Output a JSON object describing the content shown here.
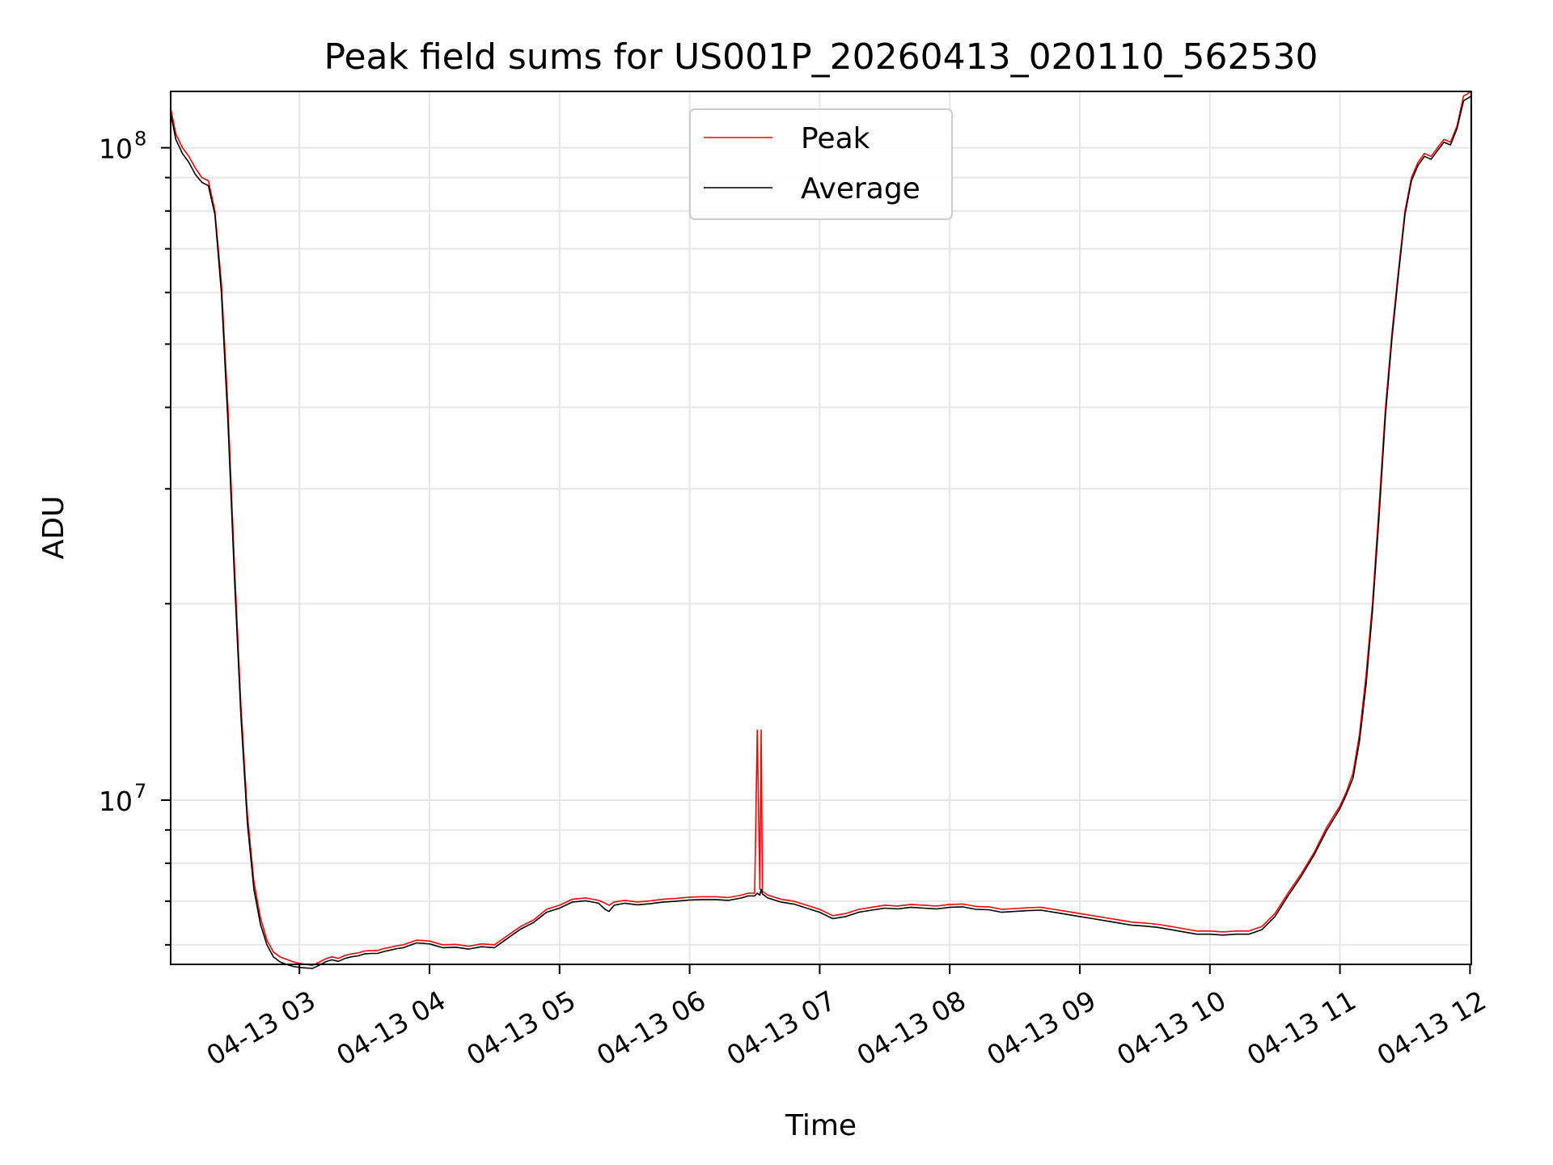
{
  "chart_data": {
    "type": "line",
    "title": "Peak field sums for US001P_20260413_020110_562530",
    "xlabel": "Time",
    "ylabel": "ADU",
    "yscale": "log",
    "xlim": [
      2.01,
      12.01
    ],
    "ylim": [
      5600000,
      122000000
    ],
    "x_ticks": [
      {
        "value": 3,
        "label": "04-13 03"
      },
      {
        "value": 4,
        "label": "04-13 04"
      },
      {
        "value": 5,
        "label": "04-13 05"
      },
      {
        "value": 6,
        "label": "04-13 06"
      },
      {
        "value": 7,
        "label": "04-13 07"
      },
      {
        "value": 8,
        "label": "04-13 08"
      },
      {
        "value": 9,
        "label": "04-13 09"
      },
      {
        "value": 10,
        "label": "04-13 10"
      },
      {
        "value": 11,
        "label": "04-13 11"
      },
      {
        "value": 12,
        "label": "04-13 12"
      }
    ],
    "y_major_ticks": [
      {
        "value": 10000000,
        "base": "10",
        "exp": "7"
      },
      {
        "value": 100000000,
        "base": "10",
        "exp": "8"
      }
    ],
    "y_minor_ticks": [
      6000000,
      7000000,
      8000000,
      9000000,
      20000000,
      30000000,
      40000000,
      50000000,
      60000000,
      70000000,
      80000000,
      90000000
    ],
    "grid": true,
    "legend_position": "upper center",
    "series": [
      {
        "name": "Peak",
        "color": "#ff0000",
        "x": [
          2.01,
          2.05,
          2.1,
          2.15,
          2.2,
          2.25,
          2.3,
          2.35,
          2.4,
          2.45,
          2.5,
          2.55,
          2.6,
          2.65,
          2.7,
          2.75,
          2.8,
          2.85,
          2.9,
          2.95,
          3.0,
          3.05,
          3.1,
          3.15,
          3.2,
          3.25,
          3.3,
          3.35,
          3.4,
          3.45,
          3.5,
          3.55,
          3.6,
          3.65,
          3.7,
          3.75,
          3.8,
          3.85,
          3.9,
          4.0,
          4.1,
          4.2,
          4.3,
          4.4,
          4.5,
          4.6,
          4.7,
          4.8,
          4.9,
          5.0,
          5.1,
          5.2,
          5.3,
          5.35,
          5.38,
          5.42,
          5.5,
          5.6,
          5.7,
          5.8,
          5.9,
          6.0,
          6.1,
          6.2,
          6.3,
          6.4,
          6.45,
          6.5,
          6.52,
          6.54,
          6.55,
          6.56,
          6.6,
          6.7,
          6.8,
          6.9,
          7.0,
          7.1,
          7.2,
          7.3,
          7.4,
          7.5,
          7.6,
          7.7,
          7.8,
          7.9,
          8.0,
          8.1,
          8.2,
          8.3,
          8.4,
          8.5,
          8.6,
          8.7,
          8.8,
          8.9,
          9.0,
          9.1,
          9.2,
          9.3,
          9.4,
          9.5,
          9.6,
          9.7,
          9.8,
          9.9,
          10.0,
          10.1,
          10.2,
          10.3,
          10.4,
          10.5,
          10.6,
          10.7,
          10.8,
          10.9,
          11.0,
          11.05,
          11.1,
          11.15,
          11.2,
          11.25,
          11.3,
          11.35,
          11.4,
          11.45,
          11.5,
          11.55,
          11.6,
          11.65,
          11.7,
          11.75,
          11.8,
          11.85,
          11.9,
          11.95,
          12.01
        ],
        "values": [
          115000000,
          105000000,
          100000000,
          97000000,
          93000000,
          90000000,
          89000000,
          80000000,
          62000000,
          40000000,
          23000000,
          14000000,
          9500000,
          7500000,
          6600000,
          6100000,
          5850000,
          5750000,
          5700000,
          5650000,
          5620000,
          5600000,
          5580000,
          5640000,
          5710000,
          5750000,
          5720000,
          5780000,
          5810000,
          5830000,
          5870000,
          5880000,
          5880000,
          5920000,
          5950000,
          5980000,
          6000000,
          6050000,
          6100000,
          6080000,
          6000000,
          6010000,
          5970000,
          6020000,
          6000000,
          6200000,
          6400000,
          6550000,
          6800000,
          6900000,
          7050000,
          7080000,
          7020000,
          6950000,
          6900000,
          6980000,
          7020000,
          6980000,
          7010000,
          7050000,
          7070000,
          7100000,
          7110000,
          7110000,
          7090000,
          7150000,
          7200000,
          7200000,
          12800000,
          7300000,
          12800000,
          7250000,
          7150000,
          7050000,
          7000000,
          6900000,
          6800000,
          6650000,
          6700000,
          6800000,
          6850000,
          6900000,
          6880000,
          6920000,
          6900000,
          6880000,
          6920000,
          6930000,
          6870000,
          6860000,
          6800000,
          6820000,
          6840000,
          6850000,
          6800000,
          6750000,
          6700000,
          6650000,
          6600000,
          6550000,
          6500000,
          6480000,
          6450000,
          6400000,
          6350000,
          6300000,
          6300000,
          6280000,
          6300000,
          6300000,
          6400000,
          6700000,
          7200000,
          7700000,
          8300000,
          9100000,
          9800000,
          10300000,
          11000000,
          12600000,
          15500000,
          20000000,
          28000000,
          40000000,
          52000000,
          65000000,
          80000000,
          90000000,
          95000000,
          98000000,
          97000000,
          100000000,
          103000000,
          102000000,
          108000000,
          120000000,
          122000000
        ]
      },
      {
        "name": "Average",
        "color": "#000000",
        "x": [
          2.01,
          2.05,
          2.1,
          2.15,
          2.2,
          2.25,
          2.3,
          2.35,
          2.4,
          2.45,
          2.5,
          2.55,
          2.6,
          2.65,
          2.7,
          2.75,
          2.8,
          2.85,
          2.9,
          2.95,
          3.0,
          3.05,
          3.1,
          3.15,
          3.2,
          3.25,
          3.3,
          3.35,
          3.4,
          3.45,
          3.5,
          3.55,
          3.6,
          3.65,
          3.7,
          3.75,
          3.8,
          3.85,
          3.9,
          4.0,
          4.1,
          4.2,
          4.3,
          4.4,
          4.5,
          4.6,
          4.7,
          4.8,
          4.9,
          5.0,
          5.1,
          5.2,
          5.3,
          5.35,
          5.38,
          5.42,
          5.5,
          5.6,
          5.7,
          5.8,
          5.9,
          6.0,
          6.1,
          6.2,
          6.3,
          6.4,
          6.45,
          6.5,
          6.52,
          6.54,
          6.55,
          6.56,
          6.6,
          6.7,
          6.8,
          6.9,
          7.0,
          7.1,
          7.2,
          7.3,
          7.4,
          7.5,
          7.6,
          7.7,
          7.8,
          7.9,
          8.0,
          8.1,
          8.2,
          8.3,
          8.4,
          8.5,
          8.6,
          8.7,
          8.8,
          8.9,
          9.0,
          9.1,
          9.2,
          9.3,
          9.4,
          9.5,
          9.6,
          9.7,
          9.8,
          9.9,
          10.0,
          10.1,
          10.2,
          10.3,
          10.4,
          10.5,
          10.6,
          10.7,
          10.8,
          10.9,
          11.0,
          11.05,
          11.1,
          11.15,
          11.2,
          11.25,
          11.3,
          11.35,
          11.4,
          11.45,
          11.5,
          11.55,
          11.6,
          11.65,
          11.7,
          11.75,
          11.8,
          11.85,
          11.9,
          11.95,
          12.01
        ],
        "values": [
          113000000,
          103000000,
          98000000,
          95000000,
          91000000,
          88500000,
          87500000,
          79000000,
          60000000,
          38000000,
          22000000,
          13500000,
          9200000,
          7300000,
          6450000,
          6000000,
          5750000,
          5650000,
          5600000,
          5560000,
          5540000,
          5530000,
          5520000,
          5580000,
          5650000,
          5690000,
          5660000,
          5720000,
          5750000,
          5770000,
          5810000,
          5820000,
          5820000,
          5860000,
          5890000,
          5920000,
          5940000,
          5990000,
          6040000,
          6020000,
          5940000,
          5950000,
          5910000,
          5960000,
          5940000,
          6140000,
          6340000,
          6490000,
          6730000,
          6830000,
          6980000,
          7010000,
          6950000,
          6800000,
          6750000,
          6900000,
          6950000,
          6910000,
          6940000,
          6980000,
          7000000,
          7030000,
          7040000,
          7040000,
          7020000,
          7080000,
          7130000,
          7130000,
          7200000,
          7150000,
          7300000,
          7180000,
          7080000,
          6980000,
          6930000,
          6830000,
          6730000,
          6580000,
          6630000,
          6730000,
          6780000,
          6830000,
          6810000,
          6850000,
          6830000,
          6810000,
          6850000,
          6860000,
          6800000,
          6790000,
          6730000,
          6750000,
          6770000,
          6780000,
          6730000,
          6680000,
          6630000,
          6580000,
          6530000,
          6480000,
          6430000,
          6410000,
          6380000,
          6330000,
          6280000,
          6230000,
          6230000,
          6210000,
          6230000,
          6230000,
          6330000,
          6630000,
          7130000,
          7630000,
          8230000,
          9000000,
          9700000,
          10200000,
          10800000,
          12300000,
          15000000,
          19500000,
          27000000,
          39000000,
          51000000,
          64000000,
          79000000,
          89000000,
          94000000,
          97000000,
          96000000,
          99000000,
          102000000,
          101000000,
          107000000,
          118000000,
          120000000
        ]
      }
    ]
  }
}
